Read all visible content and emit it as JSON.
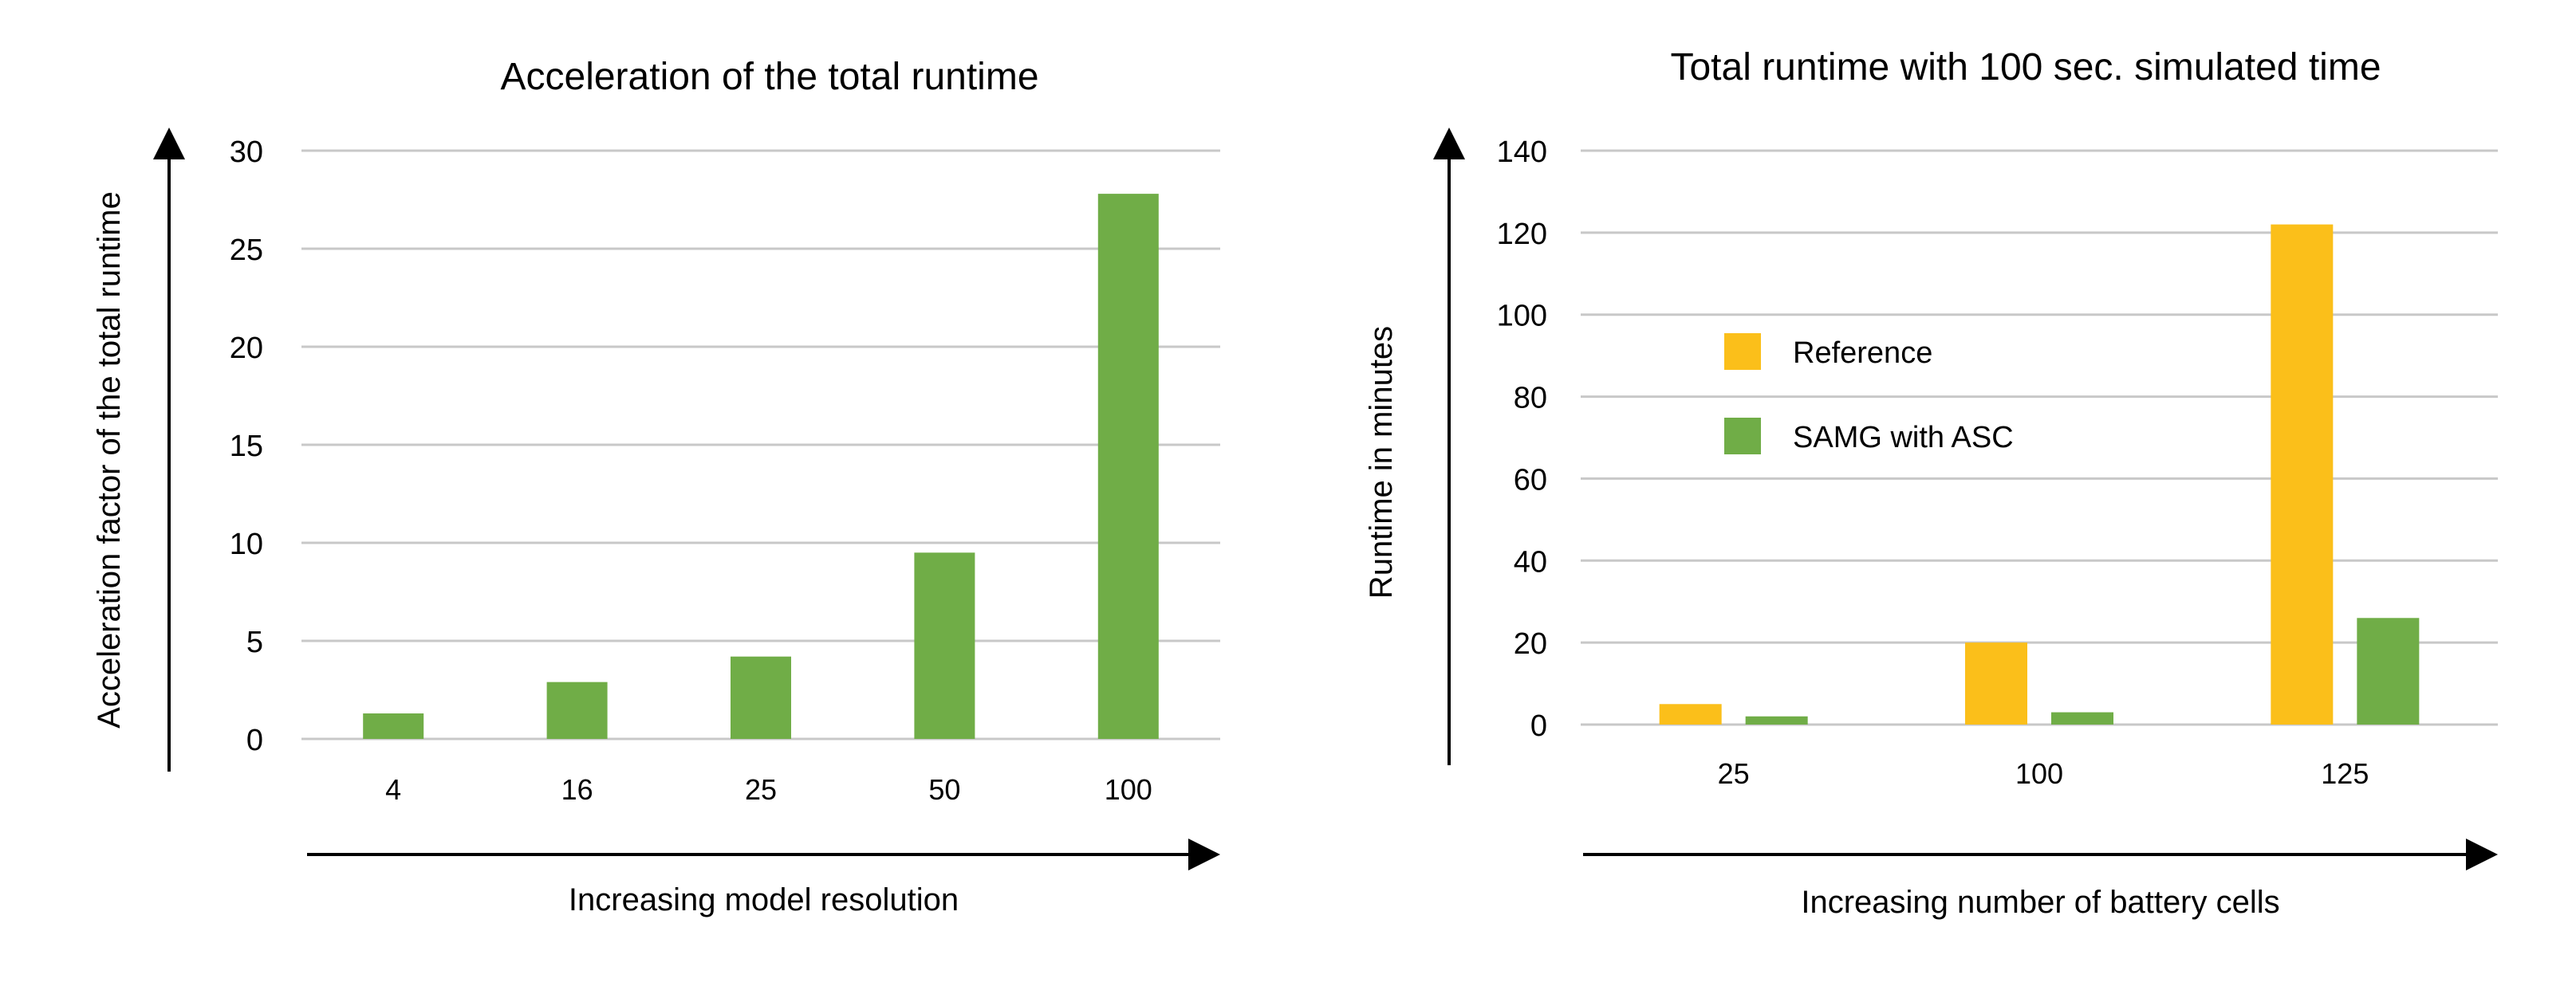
{
  "chart_data": [
    {
      "type": "bar",
      "title": "Acceleration of the total runtime",
      "xlabel": "Increasing model resolution",
      "ylabel": "Acceleration factor of the total runtime",
      "categories": [
        "4",
        "16",
        "25",
        "50",
        "100"
      ],
      "series": [
        {
          "values": [
            1.3,
            2.9,
            4.2,
            9.5,
            27.8
          ],
          "color": "#70ad47"
        }
      ],
      "yticks": [
        0,
        5,
        10,
        15,
        20,
        25,
        30
      ],
      "ylim": [
        0,
        30
      ],
      "grid": true,
      "legend": false
    },
    {
      "type": "bar",
      "title": "Total runtime with 100 sec. simulated time",
      "xlabel": "Increasing number of battery cells",
      "ylabel": "Runtime in minutes",
      "categories": [
        "25",
        "100",
        "125"
      ],
      "series": [
        {
          "name": "Reference",
          "values": [
            5,
            20,
            122
          ],
          "color": "#fbbf1a"
        },
        {
          "name": "SAMG with ASC",
          "values": [
            2,
            3,
            26
          ],
          "color": "#70ad47"
        }
      ],
      "yticks": [
        0,
        20,
        40,
        60,
        80,
        100,
        120,
        140
      ],
      "ylim": [
        0,
        140
      ],
      "grid": true,
      "legend": true,
      "legend_position": "upper-left inside plot"
    }
  ]
}
